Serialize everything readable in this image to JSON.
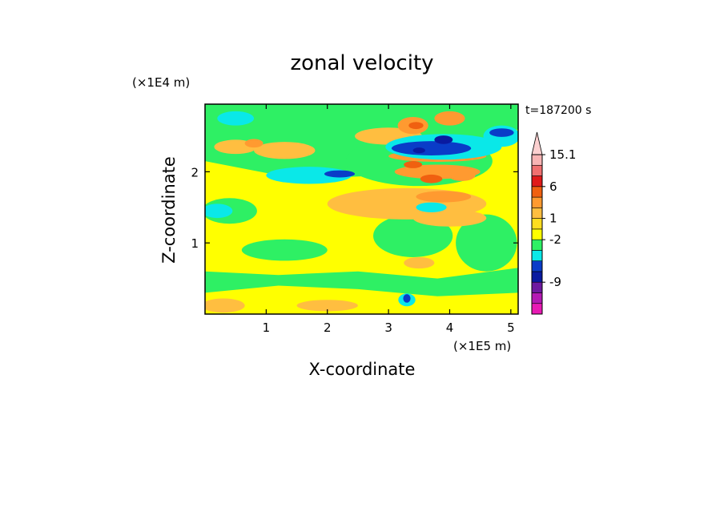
{
  "chart_data": {
    "type": "heatmap",
    "title": "zonal velocity",
    "xlabel": "X-coordinate",
    "ylabel": "Z-coordinate",
    "x_unit": "(×1E5 m)",
    "y_unit": "(×1E4 m)",
    "time_label": "t=187200 s",
    "xlim": [
      0,
      5.12
    ],
    "ylim": [
      0,
      2.95
    ],
    "x_ticks": [
      {
        "value": 1,
        "label": "1"
      },
      {
        "value": 2,
        "label": "2"
      },
      {
        "value": 3,
        "label": "3"
      },
      {
        "value": 4,
        "label": "4"
      },
      {
        "value": 5,
        "label": "5"
      }
    ],
    "y_ticks": [
      {
        "value": 1,
        "label": "1"
      },
      {
        "value": 2,
        "label": "2"
      }
    ],
    "colorbar": {
      "levels": [
        {
          "color": "#e81ab4"
        },
        {
          "color": "#b41ab4"
        },
        {
          "color": "#6e1aa0"
        },
        {
          "color": "#0a1aa0"
        },
        {
          "color": "#0a3cc8"
        },
        {
          "color": "#0ae8e8"
        },
        {
          "color": "#2ef064"
        },
        {
          "color": "#ffff00"
        },
        {
          "color": "#ffdd20"
        },
        {
          "color": "#ffbe40"
        },
        {
          "color": "#ff9a30"
        },
        {
          "color": "#f06010"
        },
        {
          "color": "#e01a1a"
        },
        {
          "color": "#f07070"
        },
        {
          "color": "#f8b4b4"
        }
      ],
      "labels": [
        {
          "text": "15.1",
          "level_index": 14
        },
        {
          "text": "6",
          "level_index": 11
        },
        {
          "text": "1",
          "level_index": 8
        },
        {
          "text": "-2",
          "level_index": 6
        },
        {
          "text": "-9",
          "level_index": 2
        }
      ]
    },
    "field": {
      "background_color": "#ffff00",
      "regions": [
        {
          "kind": "band",
          "color": "#2ef064",
          "x": [
            0.0,
            1.5,
            3.0,
            4.5,
            5.12
          ],
          "y_low": [
            2.15,
            1.9,
            1.95,
            2.35,
            2.6
          ],
          "y_high": [
            2.95,
            2.95,
            2.95,
            2.95,
            2.95
          ]
        },
        {
          "kind": "band",
          "color": "#2ef064",
          "x": [
            0.0,
            1.2,
            2.5,
            3.8,
            5.12
          ],
          "y_low": [
            0.3,
            0.4,
            0.35,
            0.25,
            0.3
          ],
          "y_high": [
            0.6,
            0.55,
            0.6,
            0.5,
            0.65
          ]
        },
        {
          "kind": "blob",
          "color": "#2ef064",
          "cx": 3.4,
          "cy": 1.1,
          "rx": 0.65,
          "ry": 0.3
        },
        {
          "kind": "blob",
          "color": "#2ef064",
          "cx": 4.6,
          "cy": 1.0,
          "rx": 0.5,
          "ry": 0.4
        },
        {
          "kind": "blob",
          "color": "#2ef064",
          "cx": 0.4,
          "cy": 1.45,
          "rx": 0.45,
          "ry": 0.18
        },
        {
          "kind": "blob",
          "color": "#2ef064",
          "cx": 1.3,
          "cy": 0.9,
          "rx": 0.7,
          "ry": 0.15
        },
        {
          "kind": "blob",
          "color": "#2ef064",
          "cx": 3.5,
          "cy": 2.15,
          "rx": 1.2,
          "ry": 0.35
        },
        {
          "kind": "blob",
          "color": "#ffbe40",
          "cx": 3.3,
          "cy": 1.55,
          "rx": 1.3,
          "ry": 0.22
        },
        {
          "kind": "blob",
          "color": "#ffbe40",
          "cx": 0.5,
          "cy": 2.35,
          "rx": 0.35,
          "ry": 0.1
        },
        {
          "kind": "blob",
          "color": "#ffbe40",
          "cx": 1.3,
          "cy": 2.3,
          "rx": 0.5,
          "ry": 0.12
        },
        {
          "kind": "blob",
          "color": "#ffbe40",
          "cx": 3.0,
          "cy": 2.5,
          "rx": 0.55,
          "ry": 0.12
        },
        {
          "kind": "blob",
          "color": "#ffbe40",
          "cx": 4.0,
          "cy": 1.35,
          "rx": 0.6,
          "ry": 0.12
        },
        {
          "kind": "blob",
          "color": "#ffbe40",
          "cx": 3.5,
          "cy": 0.72,
          "rx": 0.25,
          "ry": 0.08
        },
        {
          "kind": "blob",
          "color": "#ffbe40",
          "cx": 0.3,
          "cy": 0.12,
          "rx": 0.35,
          "ry": 0.1
        },
        {
          "kind": "blob",
          "color": "#ffbe40",
          "cx": 2.0,
          "cy": 0.12,
          "rx": 0.5,
          "ry": 0.08
        },
        {
          "kind": "blob",
          "color": "#ff9a30",
          "cx": 3.9,
          "cy": 1.65,
          "rx": 0.45,
          "ry": 0.08
        },
        {
          "kind": "blob",
          "color": "#ff9a30",
          "cx": 3.8,
          "cy": 2.0,
          "rx": 0.7,
          "ry": 0.1
        },
        {
          "kind": "blob",
          "color": "#ff9a30",
          "cx": 3.8,
          "cy": 2.22,
          "rx": 0.8,
          "ry": 0.08
        },
        {
          "kind": "blob",
          "color": "#ff9a30",
          "cx": 3.4,
          "cy": 2.65,
          "rx": 0.25,
          "ry": 0.12
        },
        {
          "kind": "blob",
          "color": "#ff9a30",
          "cx": 4.0,
          "cy": 2.75,
          "rx": 0.25,
          "ry": 0.1
        },
        {
          "kind": "blob",
          "color": "#ff9a30",
          "cx": 0.8,
          "cy": 2.4,
          "rx": 0.15,
          "ry": 0.06
        },
        {
          "kind": "blob",
          "color": "#ff9a30",
          "cx": 4.2,
          "cy": 1.95,
          "rx": 0.22,
          "ry": 0.08
        },
        {
          "kind": "blob",
          "color": "#f06010",
          "cx": 3.7,
          "cy": 1.9,
          "rx": 0.18,
          "ry": 0.06
        },
        {
          "kind": "blob",
          "color": "#f06010",
          "cx": 3.4,
          "cy": 2.1,
          "rx": 0.15,
          "ry": 0.05
        },
        {
          "kind": "blob",
          "color": "#f06010",
          "cx": 3.45,
          "cy": 2.65,
          "rx": 0.12,
          "ry": 0.05
        },
        {
          "kind": "blob",
          "color": "#0ae8e8",
          "cx": 1.7,
          "cy": 1.95,
          "rx": 0.7,
          "ry": 0.12
        },
        {
          "kind": "blob",
          "color": "#0ae8e8",
          "cx": 0.2,
          "cy": 1.45,
          "rx": 0.25,
          "ry": 0.1
        },
        {
          "kind": "blob",
          "color": "#0ae8e8",
          "cx": 0.5,
          "cy": 2.75,
          "rx": 0.3,
          "ry": 0.1
        },
        {
          "kind": "blob",
          "color": "#0ae8e8",
          "cx": 3.9,
          "cy": 2.35,
          "rx": 0.95,
          "ry": 0.18
        },
        {
          "kind": "blob",
          "color": "#0ae8e8",
          "cx": 4.85,
          "cy": 2.5,
          "rx": 0.3,
          "ry": 0.15
        },
        {
          "kind": "blob",
          "color": "#0ae8e8",
          "cx": 3.7,
          "cy": 1.5,
          "rx": 0.25,
          "ry": 0.07
        },
        {
          "kind": "blob",
          "color": "#0ae8e8",
          "cx": 3.3,
          "cy": 0.2,
          "rx": 0.14,
          "ry": 0.09
        },
        {
          "kind": "blob",
          "color": "#0a3cc8",
          "cx": 3.7,
          "cy": 2.33,
          "rx": 0.65,
          "ry": 0.1
        },
        {
          "kind": "blob",
          "color": "#0a3cc8",
          "cx": 2.2,
          "cy": 1.97,
          "rx": 0.25,
          "ry": 0.05
        },
        {
          "kind": "blob",
          "color": "#0a3cc8",
          "cx": 4.85,
          "cy": 2.55,
          "rx": 0.2,
          "ry": 0.06
        },
        {
          "kind": "blob",
          "color": "#0a3cc8",
          "cx": 3.3,
          "cy": 0.22,
          "rx": 0.06,
          "ry": 0.06
        },
        {
          "kind": "blob",
          "color": "#0a1aa0",
          "cx": 3.9,
          "cy": 2.45,
          "rx": 0.15,
          "ry": 0.06
        },
        {
          "kind": "blob",
          "color": "#0a1aa0",
          "cx": 3.5,
          "cy": 2.3,
          "rx": 0.1,
          "ry": 0.04
        }
      ]
    }
  }
}
